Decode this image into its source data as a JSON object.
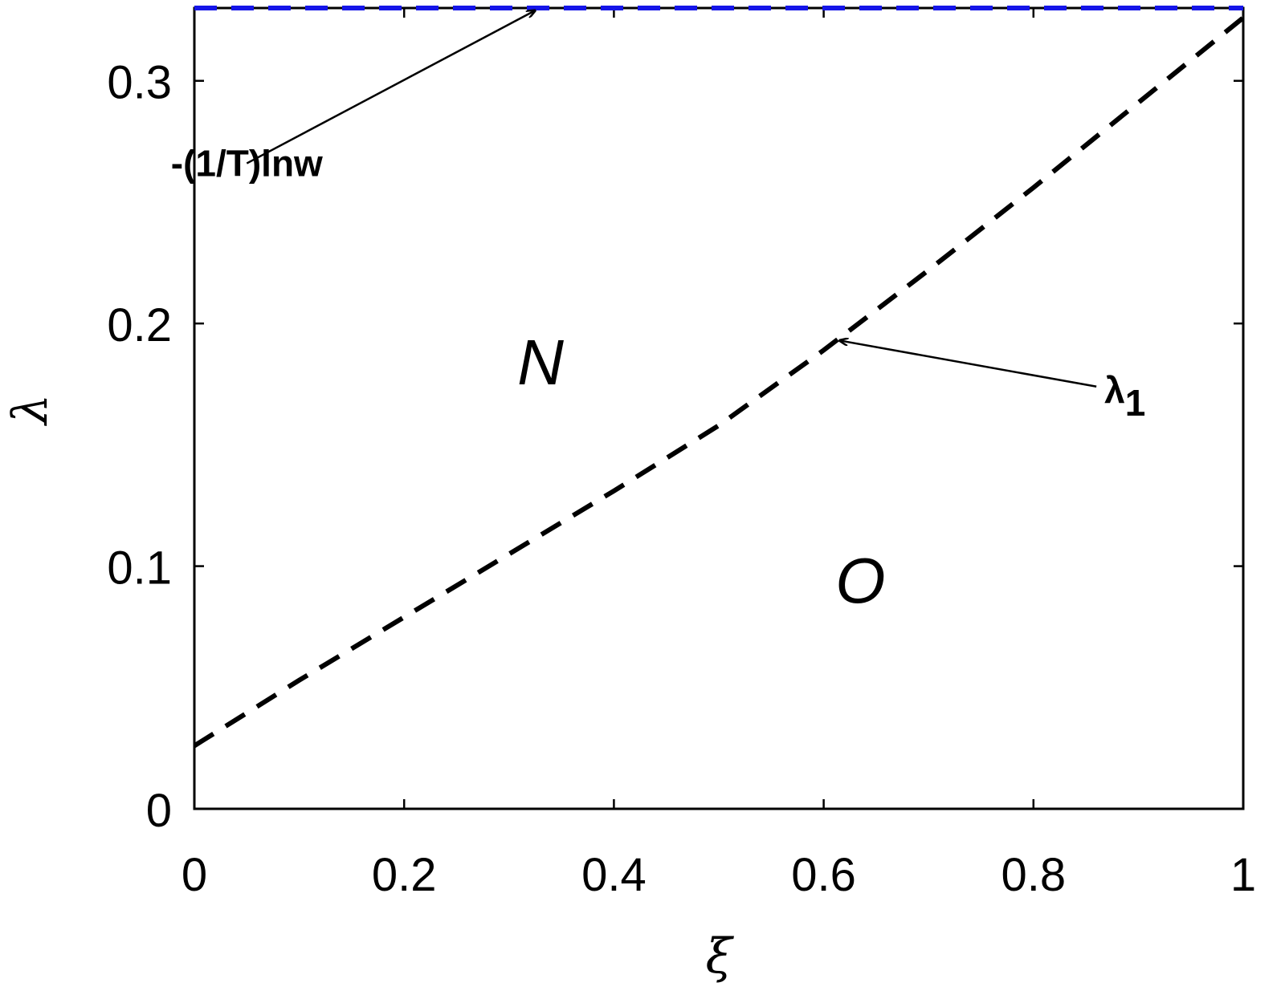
{
  "chart_data": {
    "type": "line",
    "title": "",
    "xlabel": "ξ",
    "ylabel": "λ",
    "xlim": [
      0,
      1
    ],
    "ylim": [
      0,
      0.33
    ],
    "xticks": [
      0,
      0.2,
      0.4,
      0.6,
      0.8,
      1
    ],
    "xtick_labels": [
      "0",
      "0.2",
      "0.4",
      "0.6",
      "0.8",
      "1"
    ],
    "yticks": [
      0,
      0.1,
      0.2,
      0.3
    ],
    "ytick_labels": [
      "0",
      "0.1",
      "0.2",
      "0.3"
    ],
    "grid": false,
    "series": [
      {
        "style": "dashed",
        "color": "#000000",
        "x": [
          0,
          0.1,
          0.2,
          0.3,
          0.4,
          0.5,
          0.6,
          0.7,
          0.8,
          0.9,
          1.0
        ],
        "y": [
          0.026,
          0.053,
          0.079,
          0.105,
          0.131,
          0.158,
          0.189,
          0.222,
          0.256,
          0.291,
          0.326
        ]
      },
      {
        "style": "dashed",
        "color": "#1515e8",
        "x": [
          0,
          1
        ],
        "y": [
          0.33,
          0.33
        ]
      }
    ],
    "annotations": [
      {
        "text": "-(1/T)lnw",
        "from": [
          0.05,
          0.266
        ],
        "to": [
          0.325,
          0.329
        ]
      },
      {
        "text": "λ",
        "subscript": "1",
        "from": [
          0.86,
          0.174
        ],
        "to": [
          0.615,
          0.193
        ]
      }
    ],
    "region_labels": [
      {
        "text": "N",
        "x": 0.33,
        "y": 0.175
      },
      {
        "text": "O",
        "x": 0.635,
        "y": 0.085
      }
    ]
  }
}
